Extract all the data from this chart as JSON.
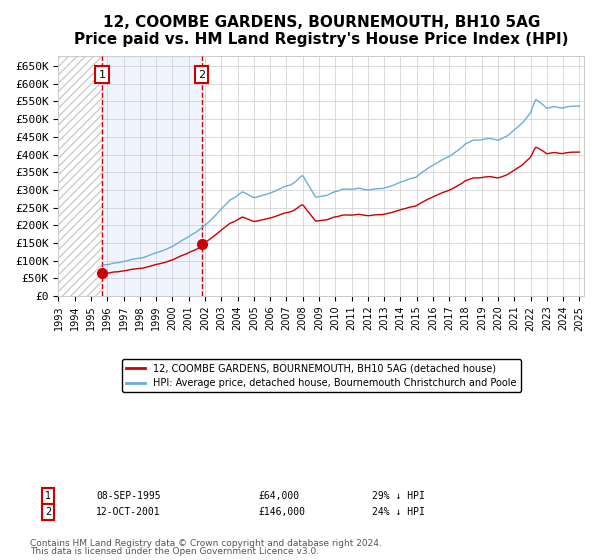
{
  "title": "12, COOMBE GARDENS, BOURNEMOUTH, BH10 5AG",
  "subtitle": "Price paid vs. HM Land Registry's House Price Index (HPI)",
  "title_fontsize": 11,
  "subtitle_fontsize": 9,
  "ylabel": "",
  "ylim": [
    0,
    680000
  ],
  "yticks": [
    0,
    50000,
    100000,
    150000,
    200000,
    250000,
    300000,
    350000,
    400000,
    450000,
    500000,
    550000,
    600000,
    650000
  ],
  "ytick_labels": [
    "£0",
    "£50K",
    "£100K",
    "£150K",
    "£200K",
    "£250K",
    "£300K",
    "£350K",
    "£400K",
    "£450K",
    "£500K",
    "£550K",
    "£600K",
    "£650K"
  ],
  "hpi_color": "#6baed6",
  "price_color": "#cc0000",
  "bg_color": "#f0f4ff",
  "plot_bg": "#ffffff",
  "hatch_color": "#cccccc",
  "sale1_date": 1995.69,
  "sale1_price": 64000,
  "sale2_date": 2001.79,
  "sale2_price": 146000,
  "sale1_label": "1",
  "sale2_label": "2",
  "legend_line1": "12, COOMBE GARDENS, BOURNEMOUTH, BH10 5AG (detached house)",
  "legend_line2": "HPI: Average price, detached house, Bournemouth Christchurch and Poole",
  "footnote_line1": "Contains HM Land Registry data © Crown copyright and database right 2024.",
  "footnote_line2": "This data is licensed under the Open Government Licence v3.0.",
  "annotation1_date": "08-SEP-1995",
  "annotation1_price": "£64,000",
  "annotation1_hpi": "29% ↓ HPI",
  "annotation2_date": "12-OCT-2001",
  "annotation2_price": "£146,000",
  "annotation2_hpi": "24% ↓ HPI"
}
